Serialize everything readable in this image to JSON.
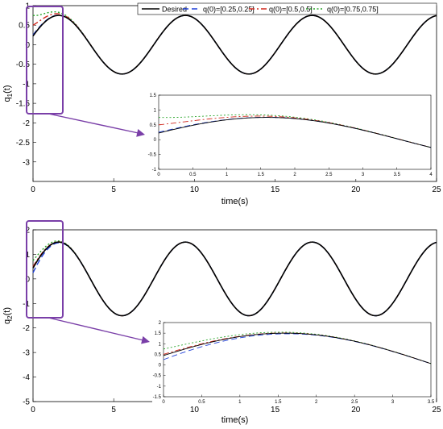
{
  "chart_data": [
    {
      "type": "line",
      "xlabel": "time(s)",
      "ylabel": "q",
      "ylabel_sub": "1",
      "ylabel_suffix": "(t)",
      "xlim": [
        0,
        25
      ],
      "ylim": [
        -3.5,
        1
      ],
      "xticks": [
        0,
        5,
        10,
        15,
        20,
        25
      ],
      "yticks": [
        1,
        0.5,
        0,
        -0.5,
        -1,
        -1.5,
        -2,
        -2.5,
        -3
      ],
      "ytick_labels": [
        "1",
        "0.5",
        "0",
        "-0.5",
        "-1",
        "-1.5",
        "-2",
        "-2.5",
        "-3"
      ],
      "grid": false,
      "legend_position": "top-right",
      "legend": [
        "Desired",
        "q(0)=[0.25,0.25]",
        "q(0)=[0.5,0.5]",
        "q(0)=[0.75,0.75]"
      ],
      "reference": {
        "amplitude": 0.75,
        "omega": 0.8,
        "phase": 0.3
      },
      "series": [
        {
          "name": "Desired",
          "color": "#000000",
          "dash": "solid",
          "initial": 0.22
        },
        {
          "name": "q(0)=[0.25,0.25]",
          "color": "#1f3fd8",
          "dash": "dashed",
          "initial": 0.25
        },
        {
          "name": "q(0)=[0.5,0.5]",
          "color": "#d0281e",
          "dash": "dashdot",
          "initial": 0.5
        },
        {
          "name": "q(0)=[0.75,0.75]",
          "color": "#2aa52a",
          "dash": "dotted",
          "initial": 0.75
        }
      ],
      "highlight_box_time": [
        0,
        1.7
      ],
      "inset": {
        "xlim": [
          0,
          4
        ],
        "ylim": [
          -1,
          1.5
        ],
        "xticks": [
          0,
          0.5,
          1,
          1.5,
          2,
          2.5,
          3,
          3.5,
          4
        ],
        "yticks": [
          1.5,
          1,
          0.5,
          0,
          -0.5,
          -1
        ]
      }
    },
    {
      "type": "line",
      "xlabel": "time(s)",
      "ylabel": "q",
      "ylabel_sub": "2",
      "ylabel_suffix": "(t)",
      "xlim": [
        0,
        25
      ],
      "ylim": [
        -5,
        2
      ],
      "xticks": [
        0,
        5,
        10,
        15,
        20,
        25
      ],
      "yticks": [
        2,
        1,
        0,
        -1,
        -2,
        -3,
        -4,
        -5
      ],
      "ytick_labels": [
        "2",
        "1",
        "0",
        "-1",
        "-2",
        "-3",
        "-4",
        "-5"
      ],
      "grid": false,
      "reference": {
        "amplitude": 1.5,
        "omega": 0.8,
        "phase": 0.3
      },
      "series": [
        {
          "name": "Desired",
          "color": "#000000",
          "dash": "solid",
          "initial": 0.44
        },
        {
          "name": "q(0)=[0.25,0.25]",
          "color": "#1f3fd8",
          "dash": "dashed",
          "initial": 0.25
        },
        {
          "name": "q(0)=[0.5,0.5]",
          "color": "#d0281e",
          "dash": "dashdot",
          "initial": 0.5
        },
        {
          "name": "q(0)=[0.75,0.75]",
          "color": "#2aa52a",
          "dash": "dotted",
          "initial": 0.75
        }
      ],
      "highlight_box_time": [
        0,
        1.7
      ],
      "inset": {
        "xlim": [
          0,
          3.5
        ],
        "ylim": [
          -1.5,
          2
        ],
        "xticks": [
          0,
          0.5,
          1,
          1.5,
          2,
          2.5,
          3,
          3.5
        ],
        "yticks": [
          2,
          1.5,
          1,
          0.5,
          0,
          -0.5,
          -1,
          -1.5
        ]
      }
    }
  ]
}
